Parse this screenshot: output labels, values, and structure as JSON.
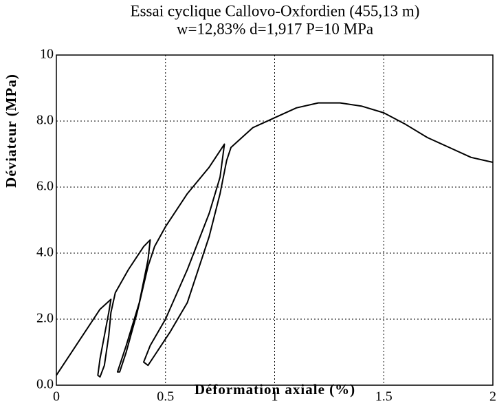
{
  "chart_data": {
    "type": "line",
    "title": "Essai cyclique Callovo-Oxfordien (455,13 m)",
    "subtitle": "w=12,83% d=1,917 P=10 MPa",
    "x_label": "Déformation axiale (%)",
    "y_label": "Déviateur  (MPa)",
    "color": "#000000",
    "grid": true,
    "x": [
      0,
      0.1,
      0.2,
      0.25,
      0.24,
      0.22,
      0.2,
      0.19,
      0.2,
      0.22,
      0.24,
      0.25,
      0.27,
      0.33,
      0.4,
      0.43,
      0.42,
      0.38,
      0.32,
      0.28,
      0.29,
      0.32,
      0.37,
      0.42,
      0.45,
      0.5,
      0.6,
      0.7,
      0.77,
      0.75,
      0.7,
      0.6,
      0.5,
      0.43,
      0.4,
      0.42,
      0.46,
      0.52,
      0.6,
      0.7,
      0.75,
      0.78,
      0.8,
      0.9,
      1.0,
      1.1,
      1.2,
      1.3,
      1.4,
      1.5,
      1.6,
      1.7,
      1.8,
      1.9,
      2.0
    ],
    "values": [
      0.3,
      1.3,
      2.3,
      2.6,
      2.2,
      1.5,
      0.8,
      0.3,
      0.25,
      0.6,
      1.5,
      2.2,
      2.8,
      3.5,
      4.2,
      4.4,
      3.8,
      2.5,
      1.2,
      0.4,
      0.4,
      1.0,
      2.2,
      3.6,
      4.2,
      4.8,
      5.8,
      6.6,
      7.3,
      6.3,
      5.2,
      3.5,
      2.0,
      1.2,
      0.7,
      0.6,
      1.0,
      1.6,
      2.5,
      4.5,
      5.8,
      6.8,
      7.2,
      7.8,
      8.1,
      8.4,
      8.55,
      8.55,
      8.45,
      8.25,
      7.9,
      7.5,
      7.2,
      6.9,
      6.75
    ],
    "xlim": [
      0,
      2
    ],
    "xticks": [
      0,
      0.5,
      1,
      1.5,
      2
    ],
    "ylim": [
      0,
      10
    ],
    "yticks": [
      {
        "value": 0,
        "label": "0.0"
      },
      {
        "value": 2,
        "label": "2.0"
      },
      {
        "value": 4,
        "label": "4.0"
      },
      {
        "value": 6,
        "label": "6.0"
      },
      {
        "value": 8,
        "label": "8.0"
      },
      10
    ]
  }
}
